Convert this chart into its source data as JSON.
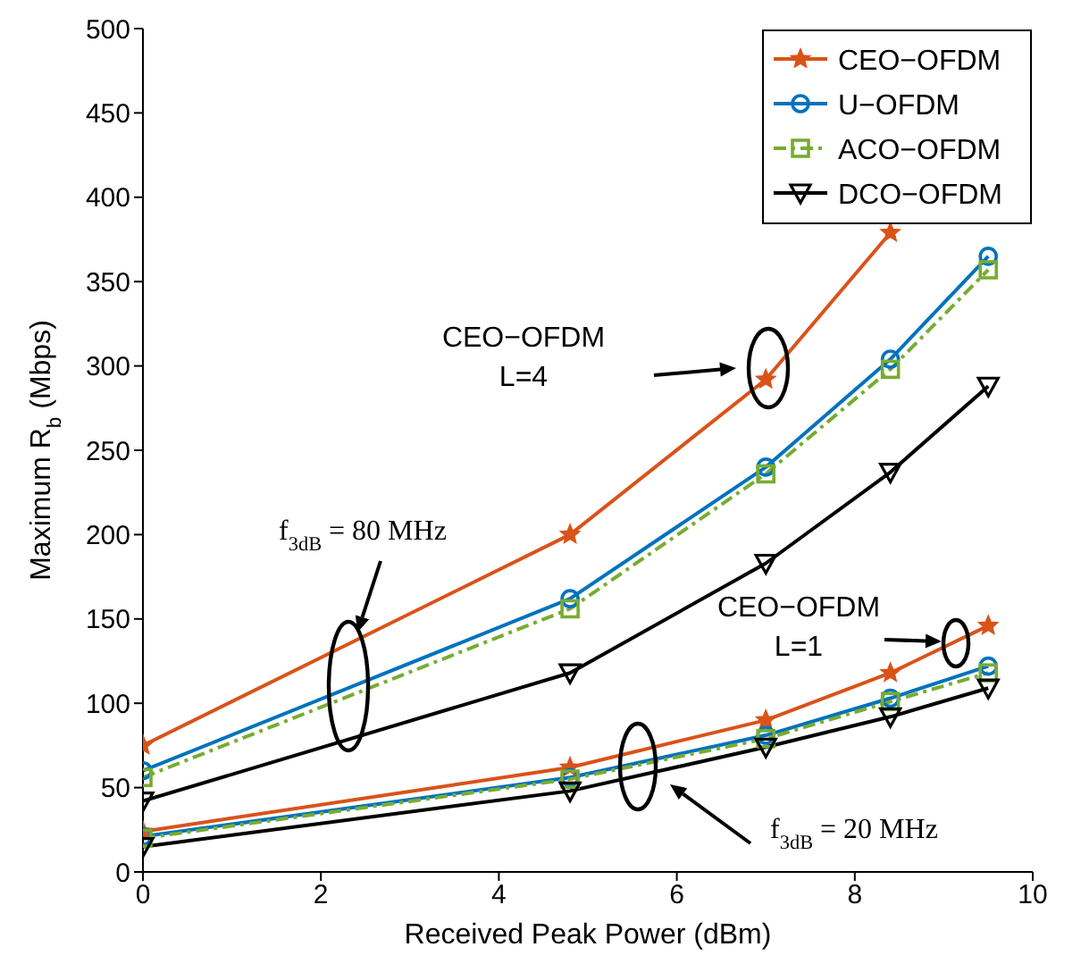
{
  "chart_data": {
    "type": "line",
    "xlabel": "Received Peak Power (dBm)",
    "ylabel": "Maximum R$_{b}$ (Mbps)",
    "x": [
      0,
      4.8,
      7,
      8.4,
      9.5
    ],
    "xlim": [
      0,
      10
    ],
    "xticks": [
      0,
      2,
      4,
      6,
      8,
      10
    ],
    "ylim": [
      0,
      500
    ],
    "yticks": [
      0,
      50,
      100,
      150,
      200,
      250,
      300,
      350,
      400,
      450,
      500
    ],
    "grid": false,
    "legend": "top right",
    "series": [
      {
        "name": "CEO−OFDM",
        "color": "#d95319",
        "marker": "star",
        "line_style": "solid",
        "values": [
          75,
          200,
          292,
          379,
          null
        ]
      },
      {
        "name": "U−OFDM",
        "color": "#0072bd",
        "marker": "circle",
        "line_style": "solid",
        "values": [
          60,
          162,
          240,
          304,
          365
        ]
      },
      {
        "name": "ACO−OFDM",
        "color": "#77ac30",
        "marker": "square",
        "line_style": "dashed",
        "values": [
          56,
          156,
          236,
          298,
          357
        ]
      },
      {
        "name": "DCO−OFDM",
        "color": "#000000",
        "marker": "triangle",
        "line_style": "solid",
        "values": [
          42,
          118,
          183,
          237,
          288
        ]
      },
      {
        "color": "#d95319",
        "marker": "star",
        "line_style": "solid",
        "values": [
          24,
          62,
          90,
          118,
          146
        ]
      },
      {
        "color": "#0072bd",
        "marker": "circle",
        "line_style": "solid",
        "values": [
          21,
          56,
          81,
          103,
          122
        ]
      },
      {
        "color": "#77ac30",
        "marker": "square",
        "line_style": "dashed",
        "values": [
          20,
          55,
          79,
          101,
          118
        ]
      },
      {
        "color": "#000000",
        "marker": "triangle",
        "line_style": "solid",
        "values": [
          15,
          48,
          74,
          92,
          109
        ]
      }
    ],
    "annotations": [
      "CEO−OFDM\nL=4",
      "f$_{3dB}$ = 80 MHz",
      "CEO−OFDM\nL=1",
      "f$_{3dB}$ = 20 MHz"
    ]
  }
}
